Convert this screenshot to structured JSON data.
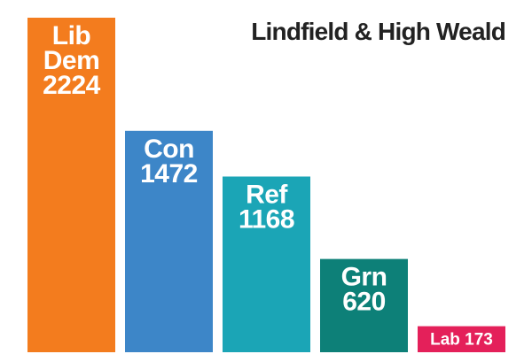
{
  "chart_data": {
    "type": "bar",
    "title": "Lindfield & High Weald",
    "xlabel": "",
    "ylabel": "",
    "ylim": [
      0,
      2224
    ],
    "grid": false,
    "categories": [
      "Lib Dem",
      "Con",
      "Ref",
      "Grn",
      "Lab"
    ],
    "values": [
      2224,
      1472,
      1168,
      620,
      173
    ],
    "colors": [
      "#f37c1e",
      "#3d86c8",
      "#1ba5b6",
      "#0d8078",
      "#e4205a"
    ],
    "data_labels": [
      [
        "Lib",
        "Dem",
        "2224"
      ],
      [
        "Con",
        "1472"
      ],
      [
        "Ref",
        "1168"
      ],
      [
        "Grn",
        "620"
      ],
      [
        "Lab 173"
      ]
    ]
  }
}
